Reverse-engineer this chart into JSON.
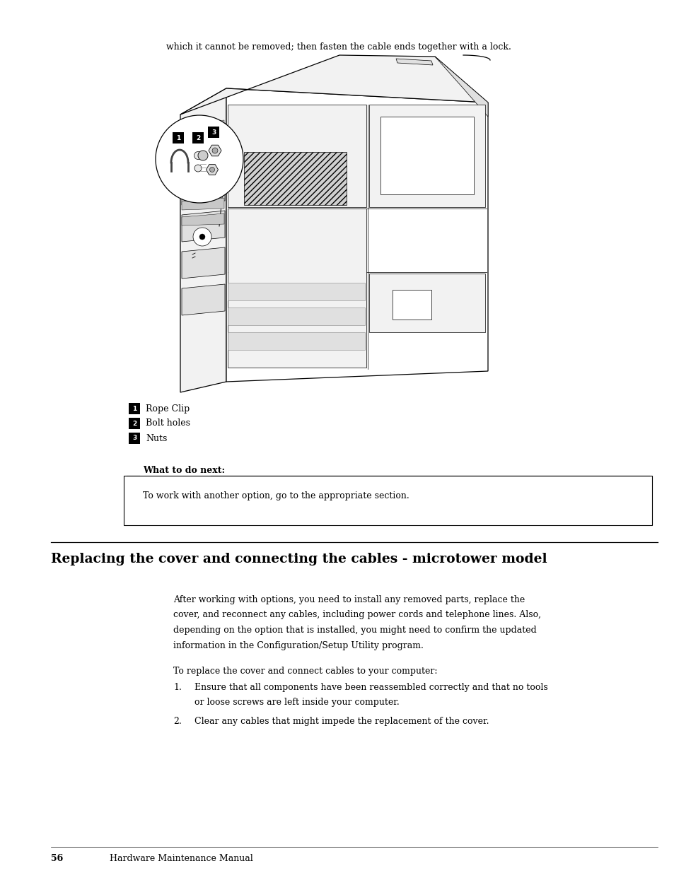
{
  "background_color": "#ffffff",
  "page_width": 9.54,
  "page_height": 12.35,
  "dpi": 100,
  "top_text": "which it cannot be removed; then fasten the cable ends together with a lock.",
  "legend_items": [
    {
      "num": "1",
      "label": "Rope Clip"
    },
    {
      "num": "2",
      "label": "Bolt holes"
    },
    {
      "num": "3",
      "label": "Nuts"
    }
  ],
  "callout_box_label": "What to do next:",
  "callout_box_text": "To work with another option, go to the appropriate section.",
  "section_title": "Replacing the cover and connecting the cables - microtower model",
  "body_paragraph1": "After working with options, you need to install any removed parts, replace the\ncover, and reconnect any cables, including power cords and telephone lines. Also,\ndepending on the option that is installed, you might need to confirm the updated\ninformation in the Configuration/Setup Utility program.",
  "body_paragraph2": "To replace the cover and connect cables to your computer:",
  "list_items": [
    "Ensure that all components have been reassembled correctly and that no tools\nor loose screws are left inside your computer.",
    "Clear any cables that might impede the replacement of the cover."
  ],
  "footer_page": "56",
  "footer_text": "Hardware Maintenance Manual",
  "text_fontsize": 9.0,
  "title_fontsize": 13.5,
  "footer_fontsize": 9.0,
  "callout_label_fontsize": 9.0
}
